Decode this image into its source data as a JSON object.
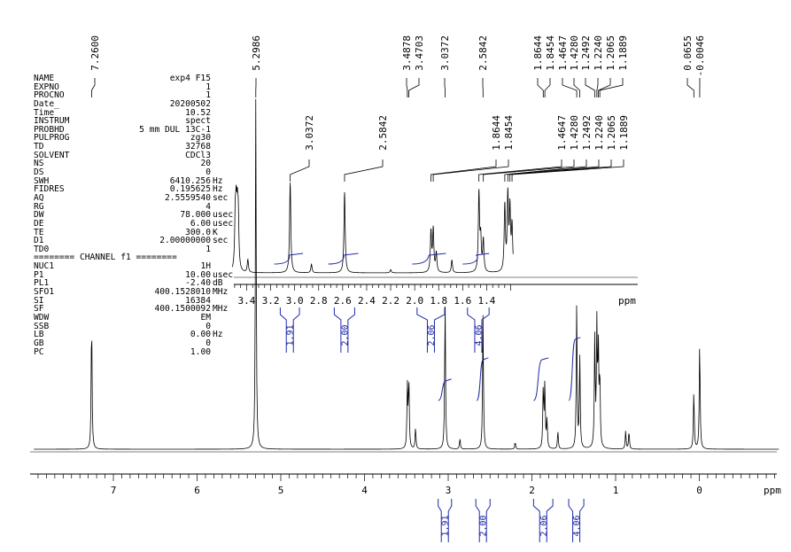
{
  "parameters": [
    {
      "key": "NAME",
      "value": "exp4 F15",
      "unit": ""
    },
    {
      "key": "EXPNO",
      "value": "1",
      "unit": ""
    },
    {
      "key": "PROCNO",
      "value": "1",
      "unit": ""
    },
    {
      "key": "Date_",
      "value": "20200502",
      "unit": ""
    },
    {
      "key": "Time",
      "value": "10.52",
      "unit": ""
    },
    {
      "key": "INSTRUM",
      "value": "spect",
      "unit": ""
    },
    {
      "key": "PROBHD",
      "value": "5 mm DUL 13C-1",
      "unit": ""
    },
    {
      "key": "PULPROG",
      "value": "zg30",
      "unit": ""
    },
    {
      "key": "TD",
      "value": "32768",
      "unit": ""
    },
    {
      "key": "SOLVENT",
      "value": "CDCl3",
      "unit": ""
    },
    {
      "key": "NS",
      "value": "20",
      "unit": ""
    },
    {
      "key": "DS",
      "value": "0",
      "unit": ""
    },
    {
      "key": "SWH",
      "value": "6410.256",
      "unit": "Hz"
    },
    {
      "key": "FIDRES",
      "value": "0.195625",
      "unit": "Hz"
    },
    {
      "key": "AQ",
      "value": "2.5559540",
      "unit": "sec"
    },
    {
      "key": "RG",
      "value": "4",
      "unit": ""
    },
    {
      "key": "DW",
      "value": "78.000",
      "unit": "usec"
    },
    {
      "key": "DE",
      "value": "6.00",
      "unit": "usec"
    },
    {
      "key": "TE",
      "value": "300.0",
      "unit": "K"
    },
    {
      "key": "D1",
      "value": "2.00000000",
      "unit": "sec"
    },
    {
      "key": "TD0",
      "value": "1",
      "unit": ""
    },
    {
      "separator": "======== CHANNEL f1 ========"
    },
    {
      "key": "NUC1",
      "value": "1H",
      "unit": ""
    },
    {
      "key": "P1",
      "value": "10.00",
      "unit": "usec"
    },
    {
      "key": "PL1",
      "value": "-2.40",
      "unit": "dB"
    },
    {
      "key": "SFO1",
      "value": "400.1528010",
      "unit": "MHz"
    },
    {
      "key": "SI",
      "value": "16384",
      "unit": ""
    },
    {
      "key": "SF",
      "value": "400.1500092",
      "unit": "MHz"
    },
    {
      "key": "WDW",
      "value": "EM",
      "unit": ""
    },
    {
      "key": "SSB",
      "value": "0",
      "unit": ""
    },
    {
      "key": "LB",
      "value": "0.00",
      "unit": "Hz"
    },
    {
      "key": "GB",
      "value": "0",
      "unit": ""
    },
    {
      "key": "PC",
      "value": "1.00",
      "unit": ""
    }
  ],
  "colors": {
    "spectrum": "#000000",
    "integral": "#1f2aa8"
  },
  "chart_data": [
    {
      "type": "line",
      "name": "main spectrum",
      "xlabel": "ppm",
      "xlim": [
        7.95,
        -0.95
      ],
      "reversed_axis": true,
      "ticks": [
        "7",
        "6",
        "5",
        "4",
        "3",
        "2",
        "1",
        "0"
      ],
      "peak_labels": [
        "7.2600",
        "5.2986",
        "3.4878",
        "3.4703",
        "3.0372",
        "2.5842",
        "1.8644",
        "1.8454",
        "1.4647",
        "1.4280",
        "1.2492",
        "1.2240",
        "1.2065",
        "1.1889",
        "0.0655",
        "-0.0046"
      ],
      "peaks": [
        {
          "x": 7.26,
          "h": 0.37
        },
        {
          "x": 5.2986,
          "h": 0.97
        },
        {
          "x": 3.4878,
          "h": 0.17
        },
        {
          "x": 3.4703,
          "h": 0.19
        },
        {
          "x": 3.39,
          "h": 0.06
        },
        {
          "x": 3.0372,
          "h": 0.41
        },
        {
          "x": 2.86,
          "h": 0.03
        },
        {
          "x": 2.5842,
          "h": 0.37
        },
        {
          "x": 2.2,
          "h": 0.02
        },
        {
          "x": 1.8644,
          "h": 0.17
        },
        {
          "x": 1.8454,
          "h": 0.18
        },
        {
          "x": 1.82,
          "h": 0.08
        },
        {
          "x": 1.69,
          "h": 0.05
        },
        {
          "x": 1.4647,
          "h": 0.4
        },
        {
          "x": 1.428,
          "h": 0.25
        },
        {
          "x": 1.2492,
          "h": 0.3
        },
        {
          "x": 1.224,
          "h": 0.33
        },
        {
          "x": 1.2065,
          "h": 0.27
        },
        {
          "x": 1.1889,
          "h": 0.2
        },
        {
          "x": 0.88,
          "h": 0.05
        },
        {
          "x": 0.84,
          "h": 0.05
        },
        {
          "x": 0.0655,
          "h": 0.16
        },
        {
          "x": -0.0046,
          "h": 0.3
        }
      ],
      "integrals": [
        {
          "label": "1.91",
          "from": 3.12,
          "to": 2.96
        },
        {
          "label": "2.00",
          "from": 2.67,
          "to": 2.5
        },
        {
          "label": "2.06",
          "from": 1.98,
          "to": 1.75
        },
        {
          "label": "4.06",
          "from": 1.56,
          "to": 1.38
        }
      ]
    },
    {
      "type": "line",
      "name": "inset expansion",
      "xlabel": "ppm",
      "xlim": [
        3.52,
        1.18
      ],
      "reversed_axis": true,
      "ticks": [
        "3.4",
        "3.2",
        "3.0",
        "2.8",
        "2.6",
        "2.4",
        "2.2",
        "2.0",
        "1.8",
        "1.6",
        "1.4"
      ],
      "peak_labels": [
        "3.0372",
        "2.5842",
        "1.8644",
        "1.8454",
        "1.4647",
        "1.4280",
        "1.2492",
        "1.2240",
        "1.2065",
        "1.1889"
      ],
      "peaks": [
        {
          "x": 3.495,
          "h": 0.45
        },
        {
          "x": 3.487,
          "h": 0.48
        },
        {
          "x": 3.478,
          "h": 0.44
        },
        {
          "x": 3.47,
          "h": 0.47
        },
        {
          "x": 3.39,
          "h": 0.12
        },
        {
          "x": 3.0372,
          "h": 0.85
        },
        {
          "x": 2.86,
          "h": 0.08
        },
        {
          "x": 2.5842,
          "h": 0.76
        },
        {
          "x": 2.2,
          "h": 0.03
        },
        {
          "x": 1.8644,
          "h": 0.38
        },
        {
          "x": 1.8454,
          "h": 0.4
        },
        {
          "x": 1.82,
          "h": 0.18
        },
        {
          "x": 1.69,
          "h": 0.12
        },
        {
          "x": 1.4647,
          "h": 0.74
        },
        {
          "x": 1.45,
          "h": 0.3
        },
        {
          "x": 1.428,
          "h": 0.3
        },
        {
          "x": 1.2492,
          "h": 0.62
        },
        {
          "x": 1.224,
          "h": 0.7
        },
        {
          "x": 1.2065,
          "h": 0.57
        },
        {
          "x": 1.1889,
          "h": 0.42
        }
      ],
      "integrals": [
        {
          "label": "1.91",
          "from": 3.12,
          "to": 2.96
        },
        {
          "label": "2.00",
          "from": 2.67,
          "to": 2.5
        },
        {
          "label": "2.06",
          "from": 1.98,
          "to": 1.75
        },
        {
          "label": "4.06",
          "from": 1.56,
          "to": 1.38
        }
      ]
    }
  ]
}
